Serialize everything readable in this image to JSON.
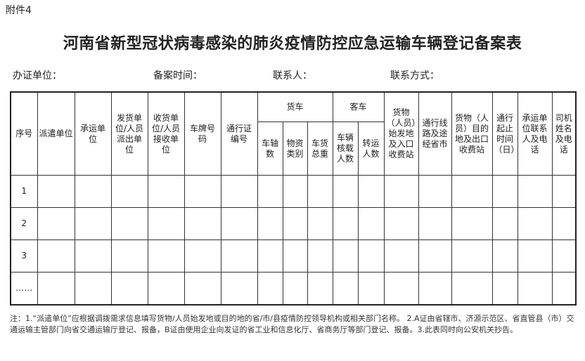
{
  "attachment_label": "附件4",
  "title": "河南省新型冠状病毒感染的肺炎疫情防控应急运输车辆登记备案表",
  "info": {
    "issuer": "办证单位：",
    "date": "备案时间：",
    "contact": "联系人：",
    "contact_method": "联系方式："
  },
  "headers": {
    "seq": "序号",
    "dispatch": "派遣单位",
    "carrier": "承运单位",
    "shipper": "发货单位/人员派出单位",
    "receiver": "收货单位/人员接收单位",
    "plate": "车牌号码",
    "permit": "通行证编号",
    "truck": "货车",
    "truck_axles": "车轴数",
    "truck_goods": "物资类别",
    "truck_weight": "车货总重",
    "bus": "客车",
    "bus_capacity": "车辆核载人数",
    "bus_passengers": "转运人数",
    "origin": "货物（人员）始发地及入口收费站",
    "route": "通行线路及途经省市",
    "destination": "货物（人员）目的地及出口收费站",
    "period": "通行起止时间（日）",
    "carrier_contact": "承运单位联系人及电话",
    "driver": "司机姓名及电话"
  },
  "rows": [
    "1",
    "2",
    "3",
    "……"
  ],
  "note": "注：1.“派遣单位”应根据调拨需求信息填写货物/人员始发地或目的地的省/市/县疫情防控领导机构或相关部门名称。 2.A证由省辖市、济源示范区、省直管县（市）交通运输主管部门向省交通运输厅登记、报备，B证由使用企业向发证的省工业和信息化厅、省商务厅等部门登记、报备。3.此表同时向公安机关抄告。"
}
